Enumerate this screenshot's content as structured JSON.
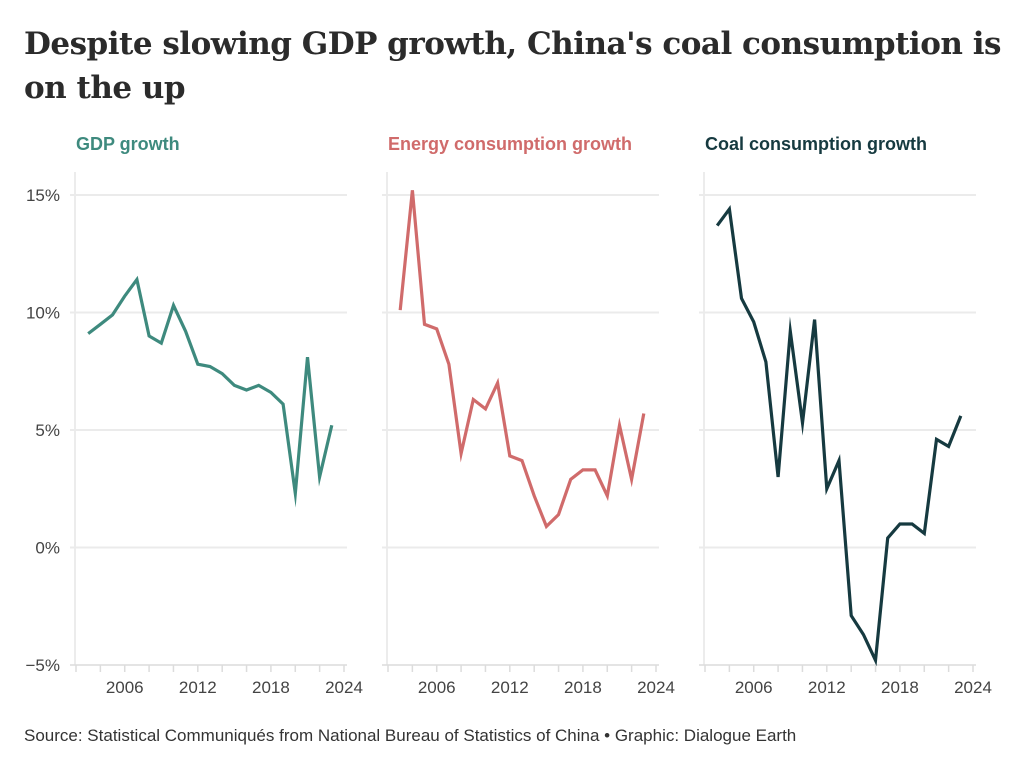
{
  "title": "Despite slowing GDP growth, China's coal consumption is on the up",
  "source": "Source: Statistical Communiqués from National Bureau of Statistics of China • Graphic: Dialogue Earth",
  "chart_data": [
    {
      "type": "line",
      "title": "GDP growth",
      "color": "#3e8a7e",
      "x": [
        2003,
        2004,
        2005,
        2006,
        2007,
        2008,
        2009,
        2010,
        2011,
        2012,
        2013,
        2014,
        2015,
        2016,
        2017,
        2018,
        2019,
        2020,
        2021,
        2022,
        2023
      ],
      "values": [
        9.1,
        9.5,
        9.9,
        10.7,
        11.4,
        9.0,
        8.7,
        10.3,
        9.2,
        7.8,
        7.7,
        7.4,
        6.9,
        6.7,
        6.9,
        6.6,
        6.1,
        2.3,
        8.1,
        3.0,
        5.2
      ],
      "xlim": [
        2002,
        2024
      ],
      "ylim": [
        -5,
        16
      ],
      "yticks": [
        -5,
        0,
        5,
        10,
        15
      ],
      "ytick_labels": [
        "−5%",
        "0%",
        "5%",
        "10%",
        "15%"
      ],
      "xticks": [
        2006,
        2012,
        2018,
        2024
      ],
      "xtick_labels": [
        "2006",
        "2012",
        "2018",
        "2024"
      ],
      "grid": true
    },
    {
      "type": "line",
      "title": "Energy consumption growth",
      "color": "#d06b6b",
      "x": [
        2003,
        2004,
        2005,
        2006,
        2007,
        2008,
        2009,
        2010,
        2011,
        2012,
        2013,
        2014,
        2015,
        2016,
        2017,
        2018,
        2019,
        2020,
        2021,
        2022,
        2023
      ],
      "values": [
        10.1,
        15.2,
        9.5,
        9.3,
        7.8,
        4.0,
        6.3,
        5.9,
        7.0,
        3.9,
        3.7,
        2.2,
        0.9,
        1.4,
        2.9,
        3.3,
        3.3,
        2.2,
        5.2,
        2.9,
        5.7
      ],
      "xlim": [
        2002,
        2024
      ],
      "ylim": [
        -5,
        16
      ],
      "xticks": [
        2006,
        2012,
        2018,
        2024
      ],
      "xtick_labels": [
        "2006",
        "2012",
        "2018",
        "2024"
      ],
      "grid": true
    },
    {
      "type": "line",
      "title": "Coal consumption growth",
      "color": "#163a40",
      "x": [
        2003,
        2004,
        2005,
        2006,
        2007,
        2008,
        2009,
        2010,
        2011,
        2012,
        2013,
        2014,
        2015,
        2016,
        2017,
        2018,
        2019,
        2020,
        2021,
        2022,
        2023
      ],
      "values": [
        13.7,
        14.4,
        10.6,
        9.6,
        7.9,
        3.0,
        9.2,
        5.3,
        9.7,
        2.5,
        3.7,
        -2.9,
        -3.7,
        -4.8,
        0.4,
        1.0,
        1.0,
        0.6,
        4.6,
        4.3,
        5.6
      ],
      "xlim": [
        2002,
        2024
      ],
      "ylim": [
        -5,
        16
      ],
      "xticks": [
        2006,
        2012,
        2018,
        2024
      ],
      "xtick_labels": [
        "2006",
        "2012",
        "2018",
        "2024"
      ],
      "grid": true
    }
  ]
}
